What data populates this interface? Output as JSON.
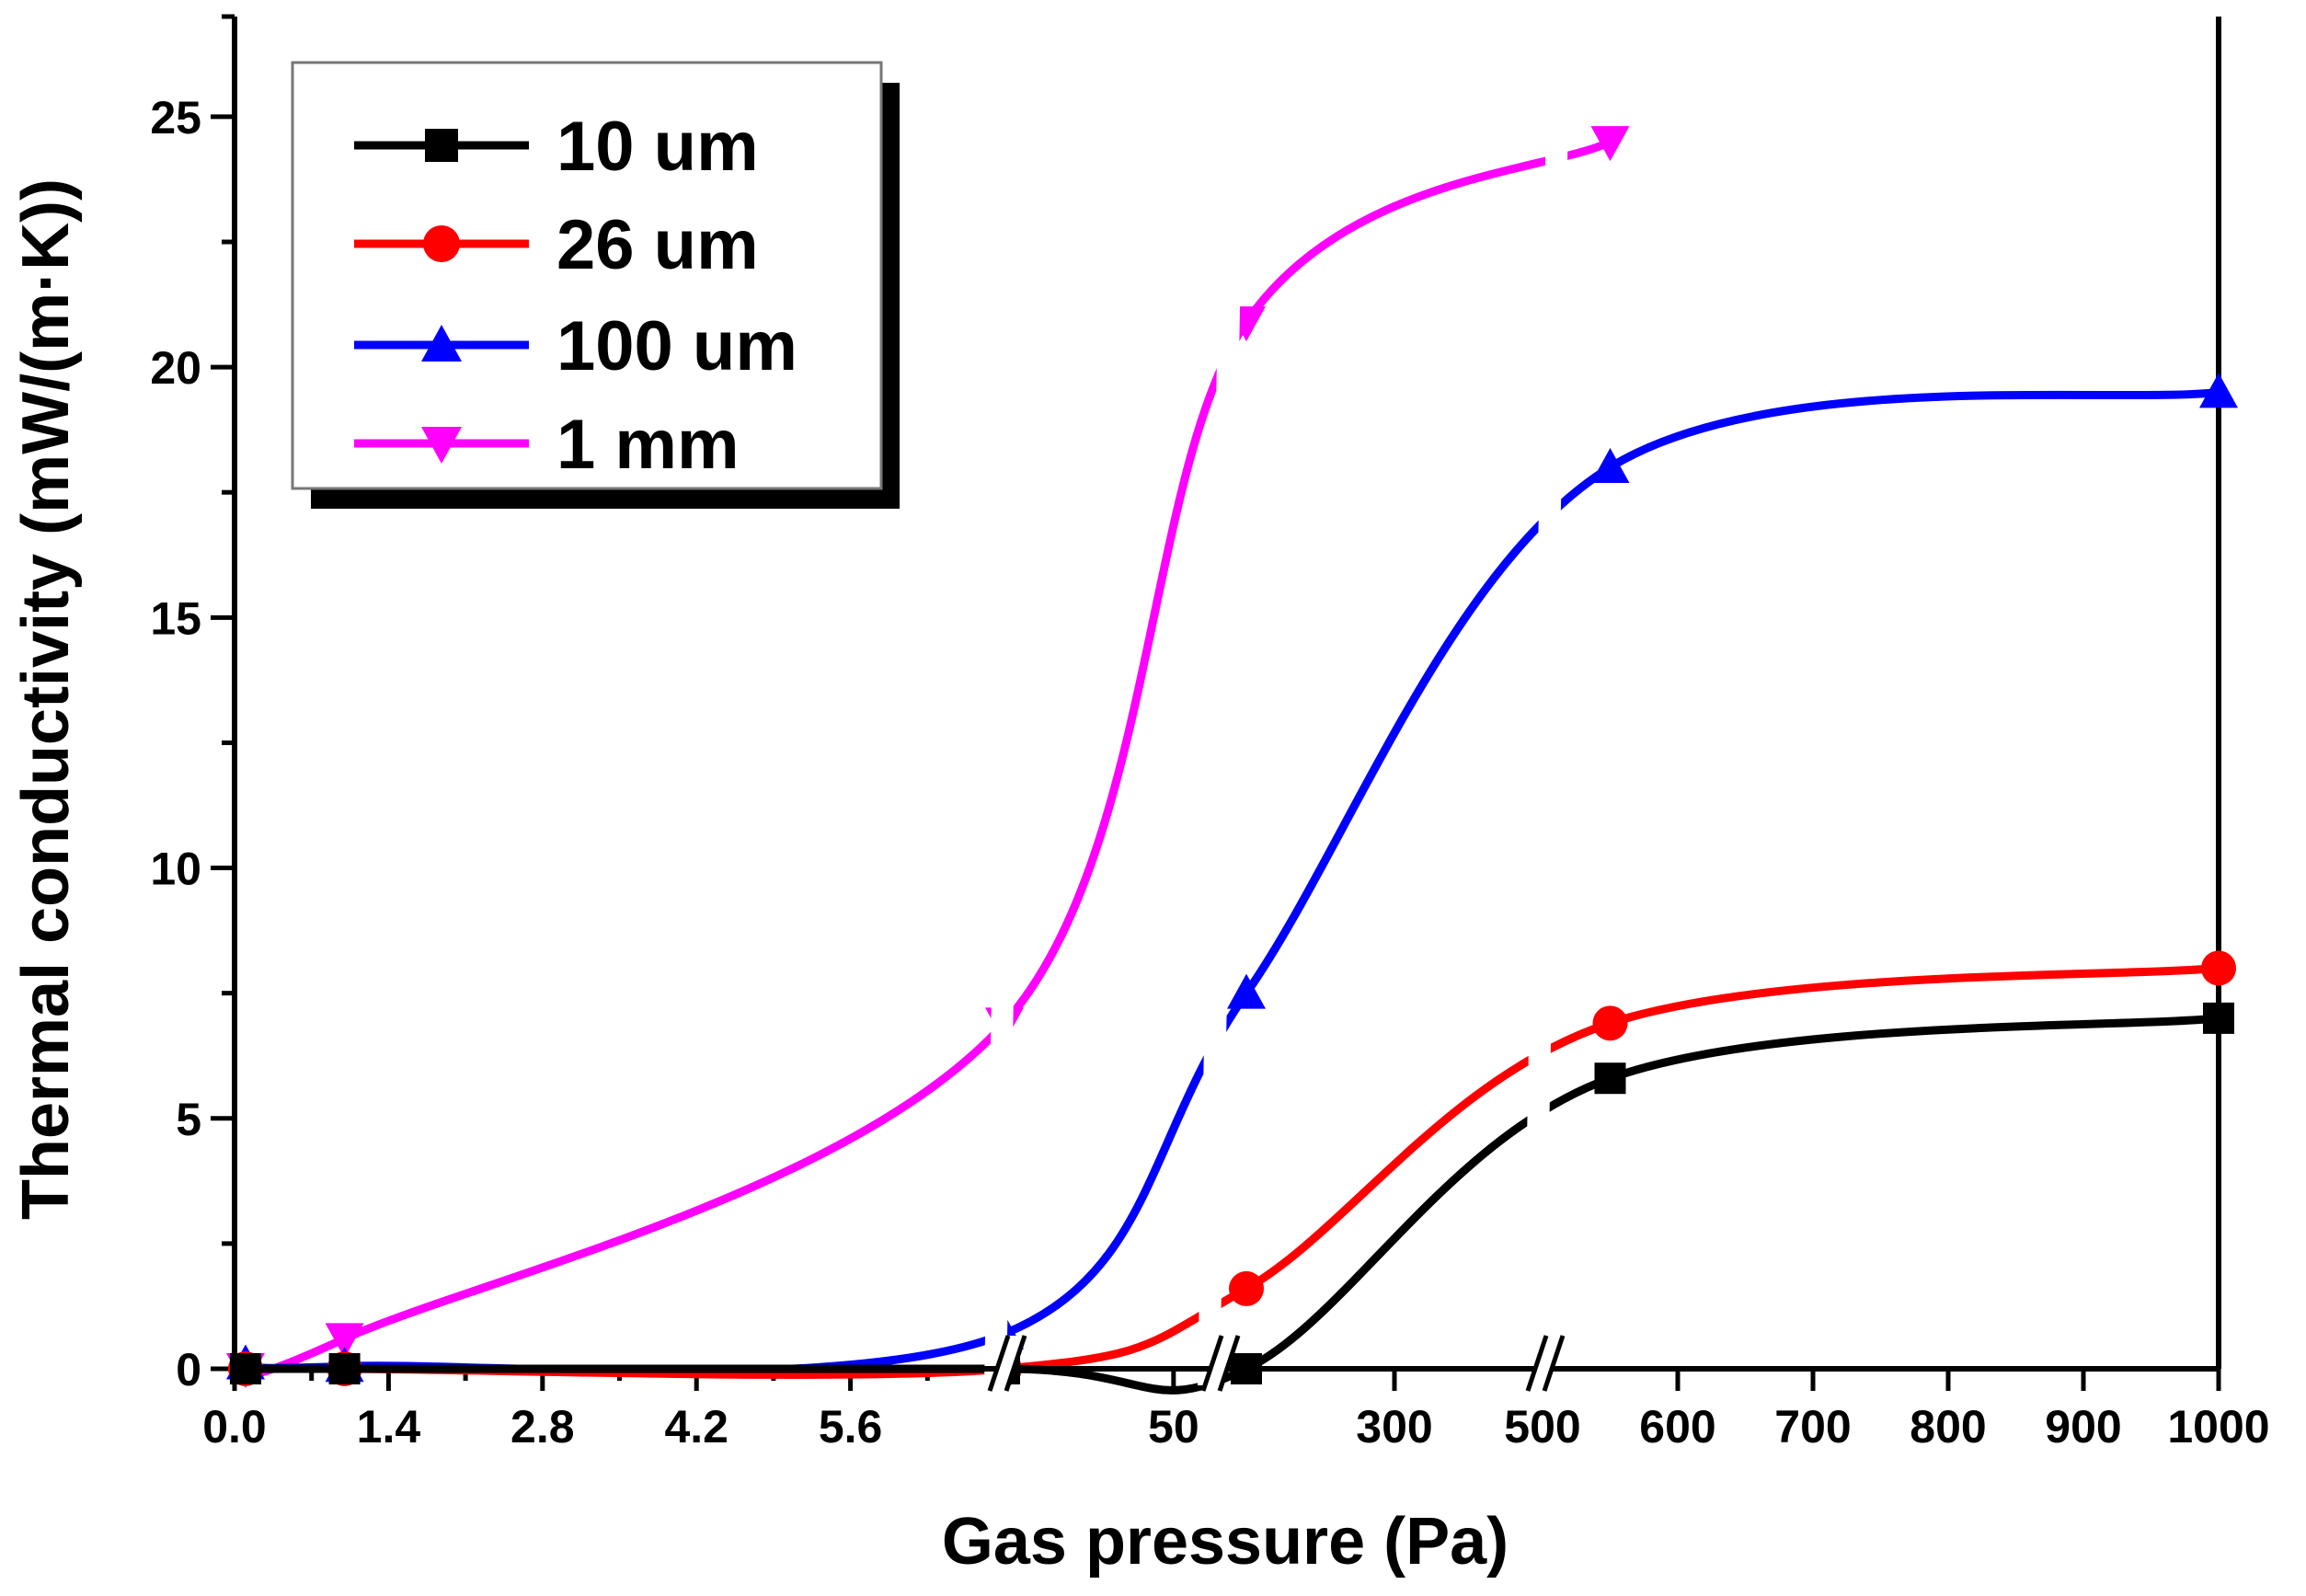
{
  "chart_data": {
    "type": "line",
    "title": "",
    "xlabel": "Gas pressure (Pa)",
    "ylabel": "Thermal conductivity (mW/(m·K))",
    "x_scale": "broken",
    "x_segments": [
      {
        "range": [
          0,
          7.0
        ],
        "ticks": [
          0.0,
          1.4,
          2.8,
          4.2,
          5.6
        ],
        "tick_labels": [
          "0.0",
          "1.4",
          "2.8",
          "4.2",
          "5.6"
        ]
      },
      {
        "range": [
          10,
          100
        ],
        "ticks": [
          50
        ],
        "tick_labels": [
          "50"
        ]
      },
      {
        "range": [
          100,
          500
        ],
        "ticks": [
          300
        ],
        "tick_labels": [
          "300"
        ]
      },
      {
        "range": [
          500,
          1000
        ],
        "ticks": [
          500,
          600,
          700,
          800,
          900,
          1000
        ],
        "tick_labels": [
          "500",
          "600",
          "700",
          "800",
          "900",
          "1000"
        ]
      }
    ],
    "ylim": [
      0,
      27
    ],
    "y_ticks": [
      0,
      5,
      10,
      15,
      20,
      25
    ],
    "y_tick_labels": [
      "0",
      "5",
      "10",
      "15",
      "20",
      "25"
    ],
    "grid": false,
    "legend_position": "top-left",
    "series": [
      {
        "name": "10 um",
        "color": "#000000",
        "marker": "square",
        "x": [
          0.1,
          1,
          10,
          100,
          550,
          1000
        ],
        "values": [
          0.0,
          0.0,
          0.0,
          0.0,
          5.8,
          7.0
        ]
      },
      {
        "name": "26 um",
        "color": "#ff0000",
        "marker": "circle",
        "x": [
          0.1,
          1,
          10,
          100,
          550,
          1000
        ],
        "values": [
          0.0,
          0.0,
          0.0,
          1.6,
          6.9,
          8.0
        ]
      },
      {
        "name": "100 um",
        "color": "#0000ff",
        "marker": "triangle-up",
        "x": [
          0.1,
          1,
          10,
          100,
          550,
          1000
        ],
        "values": [
          0.1,
          0.05,
          0.7,
          7.5,
          18.0,
          19.5
        ]
      },
      {
        "name": "1 mm",
        "color": "#ff00ff",
        "marker": "triangle-down",
        "x": [
          0.1,
          1,
          10,
          100,
          550
        ],
        "values": [
          0.0,
          0.6,
          6.9,
          20.9,
          24.5
        ]
      }
    ]
  }
}
